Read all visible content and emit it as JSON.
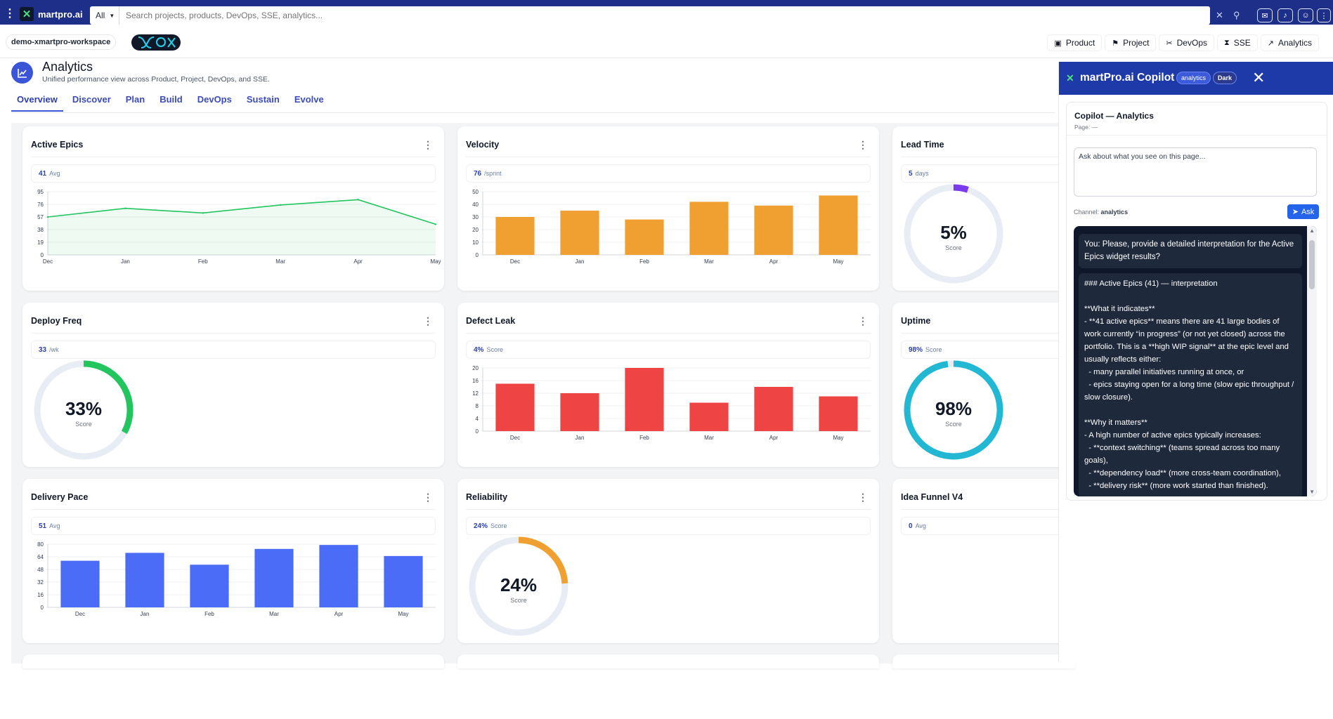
{
  "topbar": {
    "brand": "martpro.ai",
    "scope": "All",
    "search_placeholder": "Search projects, products, DevOps, SSE, analytics..."
  },
  "workspace": {
    "name": "demo-xmartpro-workspace"
  },
  "nav": [
    {
      "label": "Product",
      "icon": "box-icon"
    },
    {
      "label": "Project",
      "icon": "project-icon"
    },
    {
      "label": "DevOps",
      "icon": "tools-icon"
    },
    {
      "label": "SSE",
      "icon": "sse-icon"
    },
    {
      "label": "Analytics",
      "icon": "chart-line-icon"
    }
  ],
  "page": {
    "title": "Analytics",
    "subtitle": "Unified performance view across Product, Project, DevOps, and SSE.",
    "tabs": [
      "Overview",
      "Discover",
      "Plan",
      "Build",
      "DevOps",
      "Sustain",
      "Evolve"
    ],
    "active_tab": "Overview"
  },
  "widgets": [
    {
      "title": "Active Epics",
      "kpi": "41",
      "unit": "Avg"
    },
    {
      "title": "Velocity",
      "kpi": "76",
      "unit": "/sprint"
    },
    {
      "title": "Lead Time",
      "kpi": "5",
      "unit": "days"
    },
    {
      "title": "Deploy Freq",
      "kpi": "33",
      "unit": "/wk"
    },
    {
      "title": "Defect Leak",
      "kpi": "4%",
      "unit": "Score"
    },
    {
      "title": "Uptime",
      "kpi": "98%",
      "unit": "Score"
    },
    {
      "title": "Delivery Pace",
      "kpi": "51",
      "unit": "Avg"
    },
    {
      "title": "Reliability",
      "kpi": "24%",
      "unit": "Score"
    },
    {
      "title": "Idea Funnel V4",
      "kpi": "0",
      "unit": "Avg"
    }
  ],
  "donuts": [
    {
      "id": "lead",
      "value_text": "5%",
      "label": "Score",
      "fraction": 0.05,
      "color": "#7c3aed"
    },
    {
      "id": "deploy",
      "value_text": "33%",
      "label": "Score",
      "fraction": 0.33,
      "color": "#22c55e"
    },
    {
      "id": "uptime",
      "value_text": "98%",
      "label": "Score",
      "fraction": 0.98,
      "color": "#22b8d4"
    },
    {
      "id": "reliab",
      "value_text": "24%",
      "label": "Score",
      "fraction": 0.24,
      "color": "#f0a030"
    }
  ],
  "chart_data": [
    {
      "id": "active-epics",
      "type": "area",
      "categories": [
        "Dec",
        "Jan",
        "Feb",
        "Mar",
        "Apr",
        "May"
      ],
      "values": [
        57,
        70,
        63,
        75,
        83,
        46
      ],
      "yticks": [
        0,
        19,
        38,
        57,
        76,
        95
      ],
      "ylim": [
        0,
        95
      ],
      "color": "#22c55e"
    },
    {
      "id": "velocity",
      "type": "bar",
      "categories": [
        "Dec",
        "Jan",
        "Feb",
        "Mar",
        "Apr",
        "May"
      ],
      "values": [
        30,
        35,
        28,
        42,
        39,
        47
      ],
      "yticks": [
        0,
        10,
        20,
        30,
        40,
        50
      ],
      "ylim": [
        0,
        50
      ],
      "color": "#f0a030"
    },
    {
      "id": "defect-leak",
      "type": "bar",
      "categories": [
        "Dec",
        "Jan",
        "Feb",
        "Mar",
        "Apr",
        "May"
      ],
      "values": [
        15,
        12,
        20,
        9,
        14,
        11
      ],
      "yticks": [
        0,
        4,
        8,
        12,
        16,
        20
      ],
      "ylim": [
        0,
        20
      ],
      "color": "#ef4444"
    },
    {
      "id": "delivery-pace",
      "type": "bar",
      "categories": [
        "Dec",
        "Jan",
        "Feb",
        "Mar",
        "Apr",
        "May"
      ],
      "values": [
        59,
        69,
        54,
        74,
        79,
        65
      ],
      "yticks": [
        0,
        16,
        32,
        48,
        64,
        80
      ],
      "ylim": [
        0,
        80
      ],
      "color": "#4a6cf7"
    }
  ],
  "copilot": {
    "brand": "martPro.ai Copilot",
    "badge_context": "analytics",
    "badge_theme": "Dark",
    "card_title": "Copilot — Analytics",
    "page_label": "Page: —",
    "input_placeholder": "Ask about what you see on this page...",
    "channel_label": "Channel:",
    "channel_value": "analytics",
    "ask_label": "Ask",
    "user_message": "You: Please, provide a detailed interpretation for the Active Epics widget results?",
    "bot_message": "### Active Epics (41) — interpretation\n\n**What it indicates**\n- **41 active epics** means there are 41 large bodies of work currently “in progress” (or not yet closed) across the portfolio. This is a **high WIP signal** at the epic level and usually reflects either:\n  - many parallel initiatives running at once, or\n  - epics staying open for a long time (slow epic throughput / slow closure).\n\n**Why it matters**\n- A high number of active epics typically increases:\n  - **context switching** (teams spread across too many goals),\n  - **dependency load** (more cross-team coordination),\n  - **delivery risk** (more work started than finished)."
  }
}
